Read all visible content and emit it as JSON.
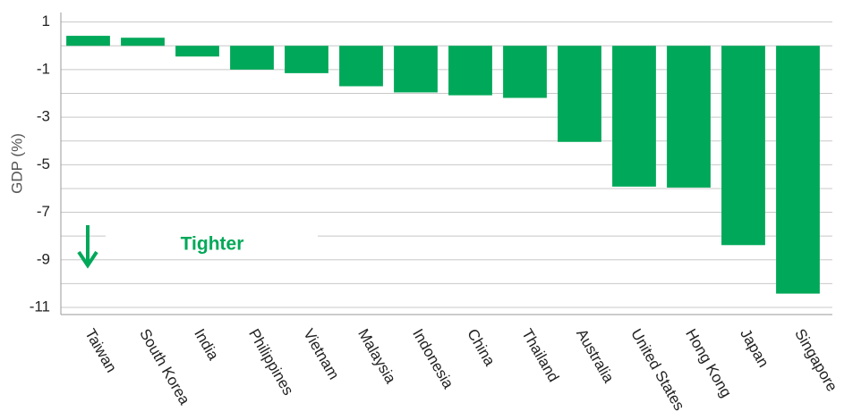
{
  "chart_data": {
    "type": "bar",
    "y_label": "GDP (%)",
    "categories": [
      "Taiwan",
      "South Korea",
      "India",
      "Philippines",
      "Vietnam",
      "Malaysia",
      "Indonesia",
      "China",
      "Thailand",
      "Australia",
      "United States",
      "Hong Kong",
      "Japan",
      "Singapore"
    ],
    "values": [
      0.42,
      0.34,
      -0.45,
      -1.0,
      -1.15,
      -1.7,
      -1.96,
      -2.08,
      -2.19,
      -4.04,
      -5.92,
      -5.96,
      -8.38,
      -10.42
    ],
    "color": "#00a859",
    "ylim": [
      -11.3,
      1.4
    ],
    "yticks": [
      1,
      -1,
      -3,
      -5,
      -7,
      -9,
      -11
    ],
    "minor_yticks": [
      0,
      -2,
      -4,
      -6,
      -8,
      -10
    ],
    "grid": true,
    "annotation": "Tighter"
  }
}
